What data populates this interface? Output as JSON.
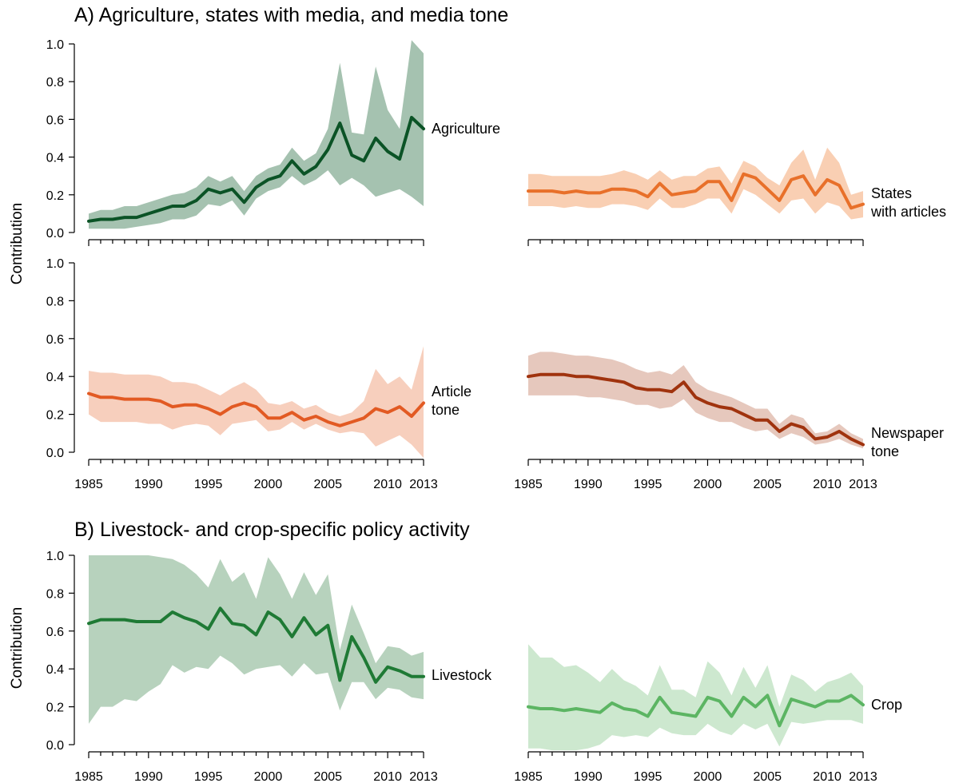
{
  "figure": {
    "section_a_title": "A) Agriculture, states with media, and media tone",
    "section_b_title": "B) Livestock- and crop-specific policy activity",
    "ylabel": "Contribution"
  },
  "chart_data": [
    {
      "type": "line",
      "name": "Agriculture",
      "label_lines": [
        "Agriculture"
      ],
      "x": [
        1985,
        1986,
        1987,
        1988,
        1989,
        1990,
        1991,
        1992,
        1993,
        1994,
        1995,
        1996,
        1997,
        1998,
        1999,
        2000,
        2001,
        2002,
        2003,
        2004,
        2005,
        2006,
        2007,
        2008,
        2009,
        2010,
        2011,
        2012,
        2013
      ],
      "values": [
        0.06,
        0.07,
        0.07,
        0.08,
        0.08,
        0.1,
        0.12,
        0.14,
        0.14,
        0.17,
        0.23,
        0.21,
        0.23,
        0.16,
        0.24,
        0.28,
        0.3,
        0.38,
        0.31,
        0.35,
        0.44,
        0.58,
        0.41,
        0.38,
        0.5,
        0.43,
        0.39,
        0.61,
        0.55
      ],
      "lower": [
        0.02,
        0.02,
        0.02,
        0.02,
        0.03,
        0.04,
        0.05,
        0.07,
        0.07,
        0.09,
        0.15,
        0.14,
        0.17,
        0.09,
        0.18,
        0.22,
        0.24,
        0.3,
        0.25,
        0.28,
        0.33,
        0.25,
        0.29,
        0.25,
        0.19,
        0.21,
        0.23,
        0.19,
        0.14
      ],
      "upper": [
        0.1,
        0.12,
        0.12,
        0.14,
        0.14,
        0.16,
        0.18,
        0.2,
        0.21,
        0.24,
        0.3,
        0.27,
        0.3,
        0.22,
        0.3,
        0.34,
        0.36,
        0.45,
        0.38,
        0.42,
        0.55,
        0.9,
        0.53,
        0.52,
        0.88,
        0.65,
        0.55,
        1.02,
        0.95
      ],
      "color": "#0b5326",
      "band_color": "#a5c2b0",
      "xticks": [
        1985,
        1990,
        1995,
        2000,
        2005,
        2010,
        2013
      ],
      "yticks": [
        0.0,
        0.2,
        0.4,
        0.6,
        0.8,
        1.0
      ],
      "ylim": [
        0,
        1
      ]
    },
    {
      "type": "line",
      "name": "States with articles",
      "label_lines": [
        "States",
        "with articles"
      ],
      "x": [
        1985,
        1986,
        1987,
        1988,
        1989,
        1990,
        1991,
        1992,
        1993,
        1994,
        1995,
        1996,
        1997,
        1998,
        1999,
        2000,
        2001,
        2002,
        2003,
        2004,
        2005,
        2006,
        2007,
        2008,
        2009,
        2010,
        2011,
        2012,
        2013
      ],
      "values": [
        0.22,
        0.22,
        0.22,
        0.21,
        0.22,
        0.21,
        0.21,
        0.23,
        0.23,
        0.22,
        0.19,
        0.26,
        0.2,
        0.21,
        0.22,
        0.27,
        0.27,
        0.17,
        0.31,
        0.29,
        0.23,
        0.17,
        0.28,
        0.3,
        0.2,
        0.28,
        0.25,
        0.13,
        0.15
      ],
      "lower": [
        0.14,
        0.14,
        0.14,
        0.13,
        0.14,
        0.13,
        0.13,
        0.15,
        0.15,
        0.14,
        0.12,
        0.18,
        0.13,
        0.13,
        0.15,
        0.18,
        0.18,
        0.1,
        0.23,
        0.2,
        0.15,
        0.1,
        0.17,
        0.18,
        0.1,
        0.16,
        0.14,
        0.07,
        0.08
      ],
      "upper": [
        0.31,
        0.31,
        0.3,
        0.3,
        0.3,
        0.3,
        0.3,
        0.31,
        0.33,
        0.31,
        0.28,
        0.33,
        0.28,
        0.3,
        0.3,
        0.34,
        0.35,
        0.26,
        0.38,
        0.35,
        0.29,
        0.25,
        0.37,
        0.44,
        0.28,
        0.45,
        0.37,
        0.2,
        0.22
      ],
      "color": "#e8702a",
      "band_color": "#f9cfb3",
      "xticks": [
        1985,
        1990,
        1995,
        2000,
        2005,
        2010,
        2013
      ],
      "yticks": [],
      "ylim": [
        0,
        1
      ]
    },
    {
      "type": "line",
      "name": "Article tone",
      "label_lines": [
        "Article",
        "tone"
      ],
      "x": [
        1985,
        1986,
        1987,
        1988,
        1989,
        1990,
        1991,
        1992,
        1993,
        1994,
        1995,
        1996,
        1997,
        1998,
        1999,
        2000,
        2001,
        2002,
        2003,
        2004,
        2005,
        2006,
        2007,
        2008,
        2009,
        2010,
        2011,
        2012,
        2013
      ],
      "values": [
        0.31,
        0.29,
        0.29,
        0.28,
        0.28,
        0.28,
        0.27,
        0.24,
        0.25,
        0.25,
        0.23,
        0.2,
        0.24,
        0.26,
        0.24,
        0.18,
        0.18,
        0.21,
        0.17,
        0.19,
        0.16,
        0.14,
        0.16,
        0.18,
        0.23,
        0.21,
        0.24,
        0.19,
        0.26
      ],
      "lower": [
        0.2,
        0.16,
        0.16,
        0.16,
        0.16,
        0.15,
        0.15,
        0.12,
        0.14,
        0.15,
        0.14,
        0.09,
        0.15,
        0.16,
        0.17,
        0.11,
        0.12,
        0.16,
        0.12,
        0.15,
        0.12,
        0.1,
        0.11,
        0.1,
        0.03,
        0.06,
        0.09,
        0.04,
        -0.03
      ],
      "upper": [
        0.43,
        0.42,
        0.42,
        0.41,
        0.41,
        0.41,
        0.4,
        0.37,
        0.37,
        0.36,
        0.33,
        0.3,
        0.34,
        0.37,
        0.33,
        0.26,
        0.25,
        0.27,
        0.23,
        0.25,
        0.21,
        0.19,
        0.21,
        0.27,
        0.44,
        0.36,
        0.4,
        0.33,
        0.56
      ],
      "color": "#e25a23",
      "band_color": "#f7cfbd",
      "xticks": [
        1985,
        1990,
        1995,
        2000,
        2005,
        2010,
        2013
      ],
      "yticks": [
        0.0,
        0.2,
        0.4,
        0.6,
        0.8,
        1.0
      ],
      "ylim": [
        0,
        1
      ]
    },
    {
      "type": "line",
      "name": "Newspaper tone",
      "label_lines": [
        "Newspaper",
        "tone"
      ],
      "x": [
        1985,
        1986,
        1987,
        1988,
        1989,
        1990,
        1991,
        1992,
        1993,
        1994,
        1995,
        1996,
        1997,
        1998,
        1999,
        2000,
        2001,
        2002,
        2003,
        2004,
        2005,
        2006,
        2007,
        2008,
        2009,
        2010,
        2011,
        2012,
        2013
      ],
      "values": [
        0.4,
        0.41,
        0.41,
        0.41,
        0.4,
        0.4,
        0.39,
        0.38,
        0.37,
        0.34,
        0.33,
        0.33,
        0.32,
        0.37,
        0.29,
        0.26,
        0.24,
        0.23,
        0.2,
        0.17,
        0.17,
        0.11,
        0.15,
        0.13,
        0.07,
        0.08,
        0.11,
        0.07,
        0.04
      ],
      "lower": [
        0.3,
        0.3,
        0.3,
        0.3,
        0.3,
        0.29,
        0.29,
        0.28,
        0.27,
        0.25,
        0.25,
        0.23,
        0.24,
        0.28,
        0.21,
        0.18,
        0.16,
        0.16,
        0.13,
        0.11,
        0.12,
        0.07,
        0.1,
        0.08,
        0.04,
        0.05,
        0.07,
        0.04,
        0.02
      ],
      "upper": [
        0.51,
        0.53,
        0.53,
        0.52,
        0.51,
        0.51,
        0.5,
        0.49,
        0.47,
        0.44,
        0.42,
        0.43,
        0.41,
        0.46,
        0.37,
        0.33,
        0.31,
        0.29,
        0.26,
        0.23,
        0.23,
        0.15,
        0.2,
        0.18,
        0.1,
        0.11,
        0.15,
        0.1,
        0.07
      ],
      "color": "#a0330e",
      "band_color": "#e6c8bd",
      "xticks": [
        1985,
        1990,
        1995,
        2000,
        2005,
        2010,
        2013
      ],
      "yticks": [],
      "ylim": [
        0,
        1
      ]
    },
    {
      "type": "line",
      "name": "Livestock",
      "label_lines": [
        "Livestock"
      ],
      "x": [
        1985,
        1986,
        1987,
        1988,
        1989,
        1990,
        1991,
        1992,
        1993,
        1994,
        1995,
        1996,
        1997,
        1998,
        1999,
        2000,
        2001,
        2002,
        2003,
        2004,
        2005,
        2006,
        2007,
        2008,
        2009,
        2010,
        2011,
        2012,
        2013
      ],
      "values": [
        0.64,
        0.66,
        0.66,
        0.66,
        0.65,
        0.65,
        0.65,
        0.7,
        0.67,
        0.65,
        0.61,
        0.72,
        0.64,
        0.63,
        0.58,
        0.7,
        0.66,
        0.57,
        0.67,
        0.58,
        0.63,
        0.34,
        0.57,
        0.46,
        0.33,
        0.41,
        0.39,
        0.36,
        0.36
      ],
      "lower": [
        0.11,
        0.2,
        0.2,
        0.24,
        0.23,
        0.28,
        0.32,
        0.42,
        0.38,
        0.41,
        0.4,
        0.47,
        0.43,
        0.37,
        0.4,
        0.41,
        0.42,
        0.36,
        0.43,
        0.37,
        0.38,
        0.18,
        0.33,
        0.33,
        0.24,
        0.3,
        0.29,
        0.25,
        0.24
      ],
      "upper": [
        1.0,
        1.0,
        1.0,
        1.0,
        1.0,
        1.0,
        0.99,
        0.98,
        0.95,
        0.9,
        0.83,
        0.98,
        0.86,
        0.91,
        0.77,
        0.99,
        0.9,
        0.77,
        0.91,
        0.79,
        0.9,
        0.5,
        0.74,
        0.59,
        0.43,
        0.52,
        0.51,
        0.47,
        0.49
      ],
      "color": "#1f7a35",
      "band_color": "#b7d2bd",
      "xticks": [
        1985,
        1990,
        1995,
        2000,
        2005,
        2010,
        2013
      ],
      "yticks": [
        0.0,
        0.2,
        0.4,
        0.6,
        0.8,
        1.0
      ],
      "ylim": [
        0,
        1
      ]
    },
    {
      "type": "line",
      "name": "Crop",
      "label_lines": [
        "Crop"
      ],
      "x": [
        1985,
        1986,
        1987,
        1988,
        1989,
        1990,
        1991,
        1992,
        1993,
        1994,
        1995,
        1996,
        1997,
        1998,
        1999,
        2000,
        2001,
        2002,
        2003,
        2004,
        2005,
        2006,
        2007,
        2008,
        2009,
        2010,
        2011,
        2012,
        2013
      ],
      "values": [
        0.2,
        0.19,
        0.19,
        0.18,
        0.19,
        0.18,
        0.17,
        0.22,
        0.19,
        0.18,
        0.15,
        0.25,
        0.17,
        0.16,
        0.15,
        0.25,
        0.23,
        0.15,
        0.25,
        0.2,
        0.26,
        0.1,
        0.24,
        0.22,
        0.2,
        0.23,
        0.23,
        0.26,
        0.21
      ],
      "lower": [
        -0.02,
        -0.02,
        -0.03,
        -0.03,
        -0.03,
        -0.02,
        0.0,
        0.05,
        0.04,
        0.05,
        0.04,
        0.09,
        0.06,
        0.05,
        0.05,
        0.11,
        0.07,
        0.05,
        0.11,
        0.08,
        0.11,
        -0.01,
        0.12,
        0.11,
        0.12,
        0.13,
        0.13,
        0.13,
        0.11
      ],
      "upper": [
        0.53,
        0.46,
        0.46,
        0.41,
        0.42,
        0.38,
        0.33,
        0.4,
        0.34,
        0.31,
        0.26,
        0.42,
        0.29,
        0.29,
        0.25,
        0.44,
        0.38,
        0.26,
        0.41,
        0.3,
        0.42,
        0.2,
        0.37,
        0.34,
        0.28,
        0.33,
        0.35,
        0.38,
        0.31
      ],
      "color": "#5cb563",
      "band_color": "#cde8cf",
      "xticks": [
        1985,
        1990,
        1995,
        2000,
        2005,
        2010,
        2013
      ],
      "yticks": [],
      "ylim": [
        0,
        1
      ]
    }
  ]
}
